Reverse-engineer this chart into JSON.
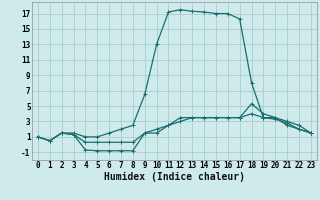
{
  "background_color": "#ceeaea",
  "grid_color": "#a8cece",
  "line_color": "#1a6e6e",
  "xlabel": "Humidex (Indice chaleur)",
  "xlim": [
    -0.5,
    23.5
  ],
  "ylim": [
    -2,
    18.5
  ],
  "xticks": [
    0,
    1,
    2,
    3,
    4,
    5,
    6,
    7,
    8,
    9,
    10,
    11,
    12,
    13,
    14,
    15,
    16,
    17,
    18,
    19,
    20,
    21,
    22,
    23
  ],
  "yticks": [
    -1,
    1,
    3,
    5,
    7,
    9,
    11,
    13,
    15,
    17
  ],
  "curve1_x": [
    0,
    1,
    2,
    3,
    4,
    5,
    6,
    7,
    8,
    9,
    10,
    11,
    12,
    13,
    14,
    15,
    16,
    17,
    18,
    19,
    20,
    21,
    22,
    23
  ],
  "curve1_y": [
    1,
    0.5,
    1.5,
    1.5,
    1.0,
    1.0,
    1.5,
    2.0,
    2.5,
    6.5,
    13.0,
    17.2,
    17.5,
    17.3,
    17.2,
    17.0,
    17.0,
    16.3,
    8.0,
    3.5,
    3.3,
    2.8,
    2.0,
    1.5
  ],
  "curve2_x": [
    0,
    1,
    2,
    3,
    4,
    5,
    6,
    7,
    8,
    9,
    10,
    11,
    12,
    13,
    14,
    15,
    16,
    17,
    18,
    19,
    20,
    21,
    22,
    23
  ],
  "curve2_y": [
    1,
    0.5,
    1.5,
    1.3,
    -0.7,
    -0.8,
    -0.8,
    -0.8,
    -0.8,
    1.5,
    1.5,
    2.5,
    3.5,
    3.5,
    3.5,
    3.5,
    3.5,
    3.5,
    5.3,
    4.0,
    3.5,
    3.0,
    2.5,
    1.5
  ],
  "curve3_x": [
    0,
    1,
    2,
    3,
    4,
    5,
    6,
    7,
    8,
    9,
    10,
    11,
    12,
    13,
    14,
    15,
    16,
    17,
    18,
    19,
    20,
    21,
    22,
    23
  ],
  "curve3_y": [
    1,
    0.5,
    1.5,
    1.3,
    0.3,
    0.3,
    0.3,
    0.3,
    0.3,
    1.5,
    2.0,
    2.5,
    3.0,
    3.5,
    3.5,
    3.5,
    3.5,
    3.5,
    4.0,
    3.5,
    3.5,
    2.5,
    2.0,
    1.5
  ],
  "tick_fontsize": 5.5,
  "label_fontsize": 7.0,
  "figwidth": 3.2,
  "figheight": 2.0,
  "dpi": 100
}
